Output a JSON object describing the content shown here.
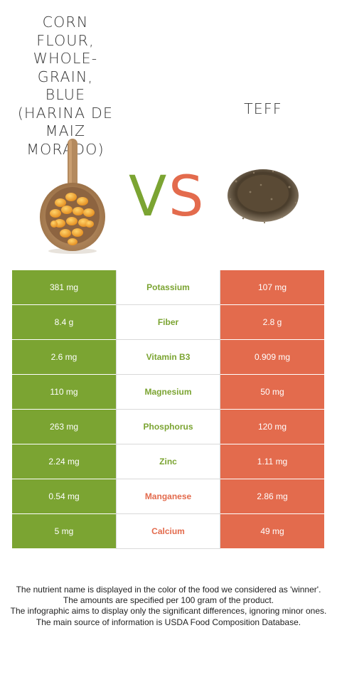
{
  "left_food": {
    "name": "Corn flour, whole-grain, blue (harina de maiz morado)"
  },
  "right_food": {
    "name": "Teff"
  },
  "vs": {
    "v": "V",
    "s": "S"
  },
  "colors": {
    "left": "#7ba432",
    "right": "#e36b4d"
  },
  "rows": [
    {
      "nutrient": "Potassium",
      "left": "381 mg",
      "right": "107 mg",
      "winner": "left"
    },
    {
      "nutrient": "Fiber",
      "left": "8.4 g",
      "right": "2.8 g",
      "winner": "left"
    },
    {
      "nutrient": "Vitamin B3",
      "left": "2.6 mg",
      "right": "0.909 mg",
      "winner": "left"
    },
    {
      "nutrient": "Magnesium",
      "left": "110 mg",
      "right": "50 mg",
      "winner": "left"
    },
    {
      "nutrient": "Phosphorus",
      "left": "263 mg",
      "right": "120 mg",
      "winner": "left"
    },
    {
      "nutrient": "Zinc",
      "left": "2.24 mg",
      "right": "1.11 mg",
      "winner": "left"
    },
    {
      "nutrient": "Manganese",
      "left": "0.54 mg",
      "right": "2.86 mg",
      "winner": "right"
    },
    {
      "nutrient": "Calcium",
      "left": "5 mg",
      "right": "49 mg",
      "winner": "right"
    }
  ],
  "footnotes": [
    "The nutrient name is displayed in the color of the food we considered as 'winner'.",
    "The amounts are specified per 100 gram of the product.",
    "The infographic aims to display only the significant differences, ignoring minor ones.",
    "The main source of information is USDA Food Composition Database."
  ]
}
